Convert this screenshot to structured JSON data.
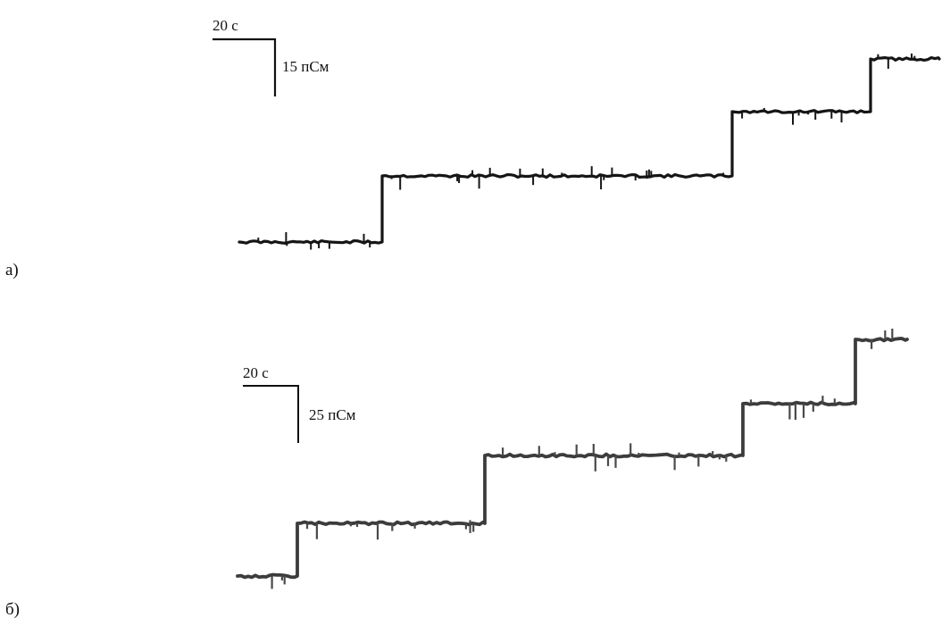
{
  "panels": [
    {
      "id": "a",
      "label": "а)",
      "scale_time_label": "20 с",
      "scale_cond_label": "15 пСм",
      "color": "#151515",
      "noise": {
        "amp": 7,
        "seed": 11
      },
      "levels": [
        0,
        1,
        2,
        3
      ]
    },
    {
      "id": "b",
      "label": "б)",
      "scale_time_label": "20 с",
      "scale_cond_label": "25 пСм",
      "color": "#3c3c3c",
      "noise": {
        "amp": 9,
        "seed": 29
      },
      "levels": [
        0,
        1,
        2,
        3,
        4
      ]
    }
  ]
}
